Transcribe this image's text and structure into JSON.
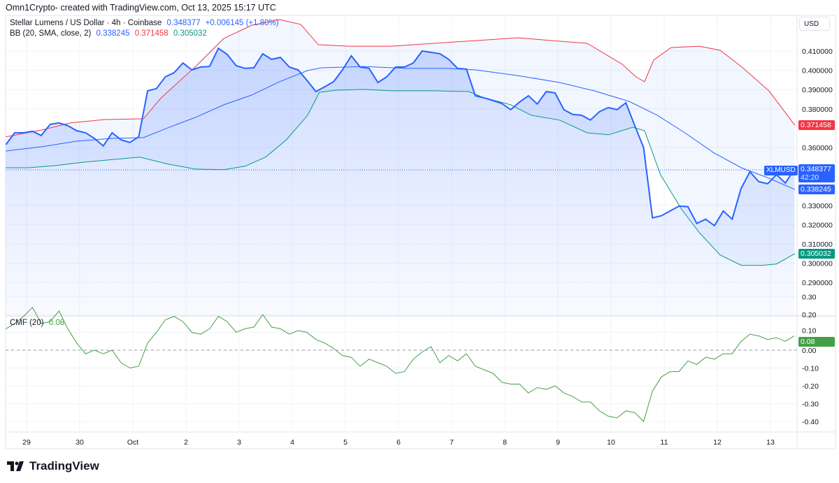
{
  "header": {
    "credit": "Omn1Crypto- created with TradingView.com, Oct 13, 2025 15:17 UTC"
  },
  "legend": {
    "symbol": "Stellar Lumens / US Dollar · 4h · Coinbase",
    "last": "0.348377",
    "change": "+0.006145 (+1.80%)",
    "bb_label": "BB (20, SMA, close, 2)",
    "bb_basis": "0.338245",
    "bb_upper": "0.371458",
    "bb_lower": "0.305032",
    "cmf_label": "CMF (20)",
    "cmf_value": "0.08"
  },
  "axis": {
    "currency": "USD",
    "symbol_tag": "XLMUSD",
    "countdown": "42:20"
  },
  "colors": {
    "price": "#2962ff",
    "upper": "#f23645",
    "lower": "#089981",
    "basis": "#2962ff",
    "cmf": "#43a047"
  },
  "logo": {
    "text": "TradingView"
  },
  "chart_data": [
    {
      "type": "line",
      "title": "Stellar Lumens / US Dollar · 4h · Coinbase",
      "ylim": [
        0.285,
        0.425
      ],
      "yticks": [
        "0.410000",
        "0.400000",
        "0.390000",
        "0.380000",
        "0.360000",
        "0.330000",
        "0.320000",
        "0.310000",
        "0.300000",
        "0.290000"
      ],
      "ytick_values": [
        0.41,
        0.4,
        0.39,
        0.38,
        0.36,
        0.33,
        0.32,
        0.31,
        0.3,
        0.29
      ],
      "xticks": [
        "29",
        "30",
        "Oct",
        "2",
        "3",
        "4",
        "5",
        "6",
        "7",
        "8",
        "9",
        "10",
        "11",
        "12",
        "13"
      ],
      "x_units": "days since Sep 29",
      "close_start_day": -0.39,
      "bar_days": 0.1667,
      "close": [
        0.3615,
        0.3676,
        0.3676,
        0.3684,
        0.3662,
        0.372,
        0.3727,
        0.3713,
        0.3687,
        0.3676,
        0.3647,
        0.3608,
        0.3676,
        0.364,
        0.3626,
        0.3655,
        0.3894,
        0.3905,
        0.3966,
        0.3988,
        0.4038,
        0.4002,
        0.4017,
        0.402,
        0.4114,
        0.4082,
        0.4024,
        0.401,
        0.4013,
        0.4086,
        0.4057,
        0.4067,
        0.4017,
        0.4002,
        0.3948,
        0.389,
        0.3915,
        0.3941,
        0.4002,
        0.4075,
        0.4017,
        0.401,
        0.3937,
        0.3966,
        0.4017,
        0.4017,
        0.4038,
        0.41,
        0.4093,
        0.4086,
        0.4057,
        0.401,
        0.4006,
        0.3868,
        0.3857,
        0.3843,
        0.3828,
        0.3796,
        0.3836,
        0.3868,
        0.3825,
        0.389,
        0.3883,
        0.3796,
        0.3771,
        0.3767,
        0.3742,
        0.3785,
        0.3807,
        0.3796,
        0.3832,
        0.3713,
        0.36,
        0.3235,
        0.3246,
        0.3271,
        0.3296,
        0.3293,
        0.3206,
        0.3228,
        0.3195,
        0.3271,
        0.3228,
        0.3387,
        0.3474,
        0.3423,
        0.3412,
        0.3459,
        0.3416,
        0.3484
      ],
      "bb_upper": [
        [
          -0.39,
          0.3655
        ],
        [
          0.29,
          0.3691
        ],
        [
          0.82,
          0.3727
        ],
        [
          1.47,
          0.3745
        ],
        [
          2.2,
          0.3749
        ],
        [
          2.53,
          0.3857
        ],
        [
          3.18,
          0.402
        ],
        [
          3.71,
          0.4165
        ],
        [
          4.24,
          0.4234
        ],
        [
          4.76,
          0.4263
        ],
        [
          5.16,
          0.4238
        ],
        [
          5.49,
          0.4133
        ],
        [
          6.08,
          0.4125
        ],
        [
          6.87,
          0.4125
        ],
        [
          7.66,
          0.414
        ],
        [
          8.45,
          0.4154
        ],
        [
          9.24,
          0.4169
        ],
        [
          9.89,
          0.4154
        ],
        [
          10.55,
          0.414
        ],
        [
          11.21,
          0.4031
        ],
        [
          11.47,
          0.3966
        ],
        [
          11.63,
          0.3941
        ],
        [
          11.8,
          0.4053
        ],
        [
          12.13,
          0.4118
        ],
        [
          12.66,
          0.4125
        ],
        [
          13.05,
          0.4104
        ],
        [
          13.45,
          0.402
        ],
        [
          13.97,
          0.3894
        ],
        [
          14.46,
          0.3715
        ]
      ],
      "bb_basis": [
        [
          -0.39,
          0.3582
        ],
        [
          0.29,
          0.3604
        ],
        [
          0.95,
          0.3633
        ],
        [
          1.61,
          0.3647
        ],
        [
          2.2,
          0.3651
        ],
        [
          2.66,
          0.3702
        ],
        [
          3.18,
          0.3756
        ],
        [
          3.71,
          0.3821
        ],
        [
          4.24,
          0.3872
        ],
        [
          4.76,
          0.3941
        ],
        [
          5.29,
          0.3999
        ],
        [
          5.55,
          0.4013
        ],
        [
          6.34,
          0.402
        ],
        [
          7.13,
          0.401
        ],
        [
          7.92,
          0.401
        ],
        [
          8.45,
          0.4002
        ],
        [
          9.24,
          0.3973
        ],
        [
          10.03,
          0.3937
        ],
        [
          10.68,
          0.3894
        ],
        [
          11.34,
          0.3839
        ],
        [
          11.87,
          0.3767
        ],
        [
          12.39,
          0.3676
        ],
        [
          12.92,
          0.3575
        ],
        [
          13.45,
          0.3495
        ],
        [
          13.97,
          0.3441
        ],
        [
          14.46,
          0.3382
        ]
      ],
      "bb_lower": [
        [
          -0.39,
          0.3495
        ],
        [
          0.03,
          0.3495
        ],
        [
          0.55,
          0.3506
        ],
        [
          1.08,
          0.3524
        ],
        [
          2.13,
          0.355
        ],
        [
          2.66,
          0.3514
        ],
        [
          3.18,
          0.3488
        ],
        [
          3.71,
          0.3485
        ],
        [
          4.11,
          0.3503
        ],
        [
          4.5,
          0.355
        ],
        [
          4.89,
          0.364
        ],
        [
          5.29,
          0.3767
        ],
        [
          5.51,
          0.3886
        ],
        [
          5.82,
          0.3897
        ],
        [
          6.34,
          0.3901
        ],
        [
          6.87,
          0.3894
        ],
        [
          7.66,
          0.3894
        ],
        [
          8.32,
          0.389
        ],
        [
          8.58,
          0.3861
        ],
        [
          9.11,
          0.3821
        ],
        [
          9.5,
          0.3767
        ],
        [
          10.03,
          0.3742
        ],
        [
          10.55,
          0.3676
        ],
        [
          10.95,
          0.3666
        ],
        [
          11.41,
          0.3705
        ],
        [
          11.63,
          0.3687
        ],
        [
          11.93,
          0.3459
        ],
        [
          12.33,
          0.3278
        ],
        [
          12.66,
          0.3159
        ],
        [
          13.05,
          0.3043
        ],
        [
          13.45,
          0.2989
        ],
        [
          13.84,
          0.2989
        ],
        [
          14.11,
          0.2996
        ],
        [
          14.46,
          0.305
        ]
      ]
    },
    {
      "type": "line",
      "title": "CMF (20)",
      "ylim": [
        -0.47,
        0.33
      ],
      "yticks": [
        "0.30",
        "0.20",
        "0.10",
        "0.00",
        "-0.10",
        "-0.20",
        "-0.30",
        "-0.40"
      ],
      "ytick_values": [
        0.3,
        0.2,
        0.1,
        0,
        -0.1,
        -0.2,
        -0.3,
        -0.4
      ],
      "start_day": -0.39,
      "bar_days": 0.1667,
      "values": [
        0.12,
        0.15,
        0.19,
        0.24,
        0.15,
        0.16,
        0.22,
        0.12,
        0.04,
        -0.02,
        0.0,
        -0.02,
        0.0,
        -0.07,
        -0.1,
        -0.09,
        0.04,
        0.1,
        0.17,
        0.19,
        0.16,
        0.1,
        0.09,
        0.12,
        0.19,
        0.16,
        0.1,
        0.12,
        0.13,
        0.2,
        0.13,
        0.12,
        0.09,
        0.11,
        0.1,
        0.06,
        0.04,
        0.01,
        -0.03,
        -0.04,
        -0.09,
        -0.05,
        -0.07,
        -0.09,
        -0.13,
        -0.12,
        -0.05,
        -0.01,
        0.02,
        -0.07,
        -0.03,
        -0.06,
        -0.02,
        -0.09,
        -0.11,
        -0.13,
        -0.18,
        -0.19,
        -0.19,
        -0.24,
        -0.21,
        -0.22,
        -0.2,
        -0.24,
        -0.26,
        -0.29,
        -0.29,
        -0.34,
        -0.37,
        -0.38,
        -0.34,
        -0.35,
        -0.4,
        -0.23,
        -0.15,
        -0.12,
        -0.12,
        -0.06,
        -0.08,
        -0.04,
        -0.05,
        -0.02,
        -0.02,
        0.05,
        0.09,
        0.08,
        0.06,
        0.07,
        0.05,
        0.08
      ]
    }
  ]
}
